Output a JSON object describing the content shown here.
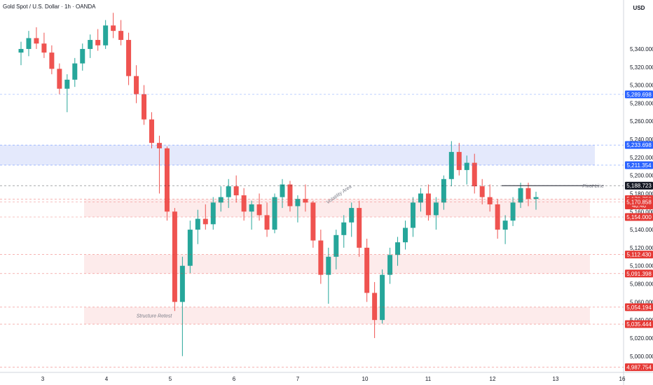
{
  "header": {
    "symbol_title": "Gold Spot / U.S. Dollar · 1h · OANDA"
  },
  "colors": {
    "up": "#26a69a",
    "down": "#ef5350",
    "resistance_fill": "#dfe5fb",
    "support_fill": "#fde8e8",
    "price_badge": "#ef5350",
    "level_badge_blue": "#2962ff",
    "level_badge_red": "#e53935",
    "current_badge": "#131722"
  },
  "chart_data": {
    "type": "candlestick",
    "currency": "USD",
    "ylim": [
      4982,
      5388
    ],
    "x_ticks": [
      "3",
      "4",
      "5",
      "6",
      "7",
      "10",
      "11",
      "12",
      "13",
      "16"
    ],
    "y_ticks": [
      5000,
      5020,
      5040,
      5060,
      5080,
      5100,
      5120,
      5140,
      5160,
      5180,
      5200,
      5220,
      5240,
      5260,
      5280,
      5300,
      5320,
      5340
    ],
    "levels": [
      {
        "value": "5,289.698",
        "color": "blue"
      },
      {
        "value": "5,233.698",
        "color": "blue"
      },
      {
        "value": "5,211.354",
        "color": "blue"
      },
      {
        "value": "5,188.723",
        "color": "dark"
      },
      {
        "value": "5,173.750",
        "color": "red",
        "sub": "40:46"
      },
      {
        "value": "5,170.858",
        "color": "red"
      },
      {
        "value": "5,154.000",
        "color": "red"
      },
      {
        "value": "5,112.430",
        "color": "red"
      },
      {
        "value": "5,091.398",
        "color": "red"
      },
      {
        "value": "5,054.194",
        "color": "red"
      },
      {
        "value": "5,035.444",
        "color": "red"
      },
      {
        "value": "4,987.754",
        "color": "red"
      }
    ],
    "zones": [
      {
        "from": 5211.354,
        "to": 5233.698,
        "kind": "resistance"
      },
      {
        "from": 5154.0,
        "to": 5173.75,
        "kind": "support"
      },
      {
        "from": 5091.398,
        "to": 5112.43,
        "kind": "support"
      },
      {
        "from": 5035.444,
        "to": 5054.194,
        "kind": "support"
      }
    ],
    "annotations": [
      {
        "text": "Pivot Line",
        "value": 5188.723
      },
      {
        "text": "Structure Retest",
        "value": 5045
      },
      {
        "text": "Volatility Area",
        "value": 5180
      }
    ],
    "candles_ohlc": [
      [
        5336,
        5348,
        5322,
        5340
      ],
      [
        5340,
        5360,
        5332,
        5352
      ],
      [
        5352,
        5364,
        5340,
        5346
      ],
      [
        5346,
        5358,
        5330,
        5336
      ],
      [
        5336,
        5344,
        5312,
        5318
      ],
      [
        5318,
        5324,
        5290,
        5296
      ],
      [
        5296,
        5312,
        5270,
        5306
      ],
      [
        5306,
        5330,
        5298,
        5324
      ],
      [
        5324,
        5346,
        5316,
        5340
      ],
      [
        5340,
        5356,
        5330,
        5350
      ],
      [
        5350,
        5362,
        5338,
        5344
      ],
      [
        5344,
        5372,
        5340,
        5366
      ],
      [
        5366,
        5380,
        5352,
        5360
      ],
      [
        5360,
        5372,
        5344,
        5350
      ],
      [
        5350,
        5358,
        5300,
        5310
      ],
      [
        5310,
        5322,
        5280,
        5290
      ],
      [
        5290,
        5300,
        5256,
        5262
      ],
      [
        5262,
        5270,
        5230,
        5236
      ],
      [
        5236,
        5244,
        5180,
        5230
      ],
      [
        5230,
        5232,
        5150,
        5160
      ],
      [
        5160,
        5164,
        5050,
        5060
      ],
      [
        5060,
        5110,
        5000,
        5100
      ],
      [
        5100,
        5150,
        5092,
        5140
      ],
      [
        5140,
        5162,
        5124,
        5152
      ],
      [
        5152,
        5168,
        5140,
        5146
      ],
      [
        5146,
        5176,
        5140,
        5170
      ],
      [
        5170,
        5188,
        5160,
        5176
      ],
      [
        5176,
        5196,
        5164,
        5188
      ],
      [
        5188,
        5200,
        5170,
        5178
      ],
      [
        5178,
        5186,
        5150,
        5160
      ],
      [
        5160,
        5172,
        5140,
        5168
      ],
      [
        5168,
        5180,
        5150,
        5156
      ],
      [
        5156,
        5170,
        5132,
        5140
      ],
      [
        5140,
        5180,
        5136,
        5176
      ],
      [
        5176,
        5196,
        5164,
        5190
      ],
      [
        5190,
        5194,
        5160,
        5166
      ],
      [
        5166,
        5178,
        5148,
        5174
      ],
      [
        5174,
        5190,
        5160,
        5170
      ],
      [
        5170,
        5172,
        5120,
        5128
      ],
      [
        5128,
        5140,
        5080,
        5090
      ],
      [
        5090,
        5120,
        5058,
        5110
      ],
      [
        5110,
        5140,
        5096,
        5134
      ],
      [
        5134,
        5156,
        5120,
        5148
      ],
      [
        5148,
        5170,
        5132,
        5164
      ],
      [
        5164,
        5172,
        5110,
        5120
      ],
      [
        5120,
        5130,
        5060,
        5070
      ],
      [
        5070,
        5082,
        5020,
        5040
      ],
      [
        5040,
        5096,
        5036,
        5090
      ],
      [
        5090,
        5120,
        5080,
        5112
      ],
      [
        5112,
        5132,
        5100,
        5126
      ],
      [
        5126,
        5150,
        5118,
        5142
      ],
      [
        5142,
        5176,
        5132,
        5170
      ],
      [
        5170,
        5186,
        5160,
        5180
      ],
      [
        5180,
        5190,
        5150,
        5156
      ],
      [
        5156,
        5176,
        5140,
        5170
      ],
      [
        5170,
        5200,
        5162,
        5196
      ],
      [
        5196,
        5238,
        5188,
        5226
      ],
      [
        5226,
        5236,
        5200,
        5206
      ],
      [
        5206,
        5222,
        5190,
        5214
      ],
      [
        5214,
        5224,
        5180,
        5188
      ],
      [
        5188,
        5196,
        5168,
        5176
      ],
      [
        5176,
        5190,
        5160,
        5168
      ],
      [
        5168,
        5174,
        5130,
        5140
      ],
      [
        5140,
        5156,
        5124,
        5150
      ],
      [
        5150,
        5176,
        5144,
        5170
      ],
      [
        5170,
        5192,
        5164,
        5186
      ],
      [
        5186,
        5192,
        5166,
        5174
      ],
      [
        5174,
        5182,
        5162,
        5176
      ]
    ]
  }
}
